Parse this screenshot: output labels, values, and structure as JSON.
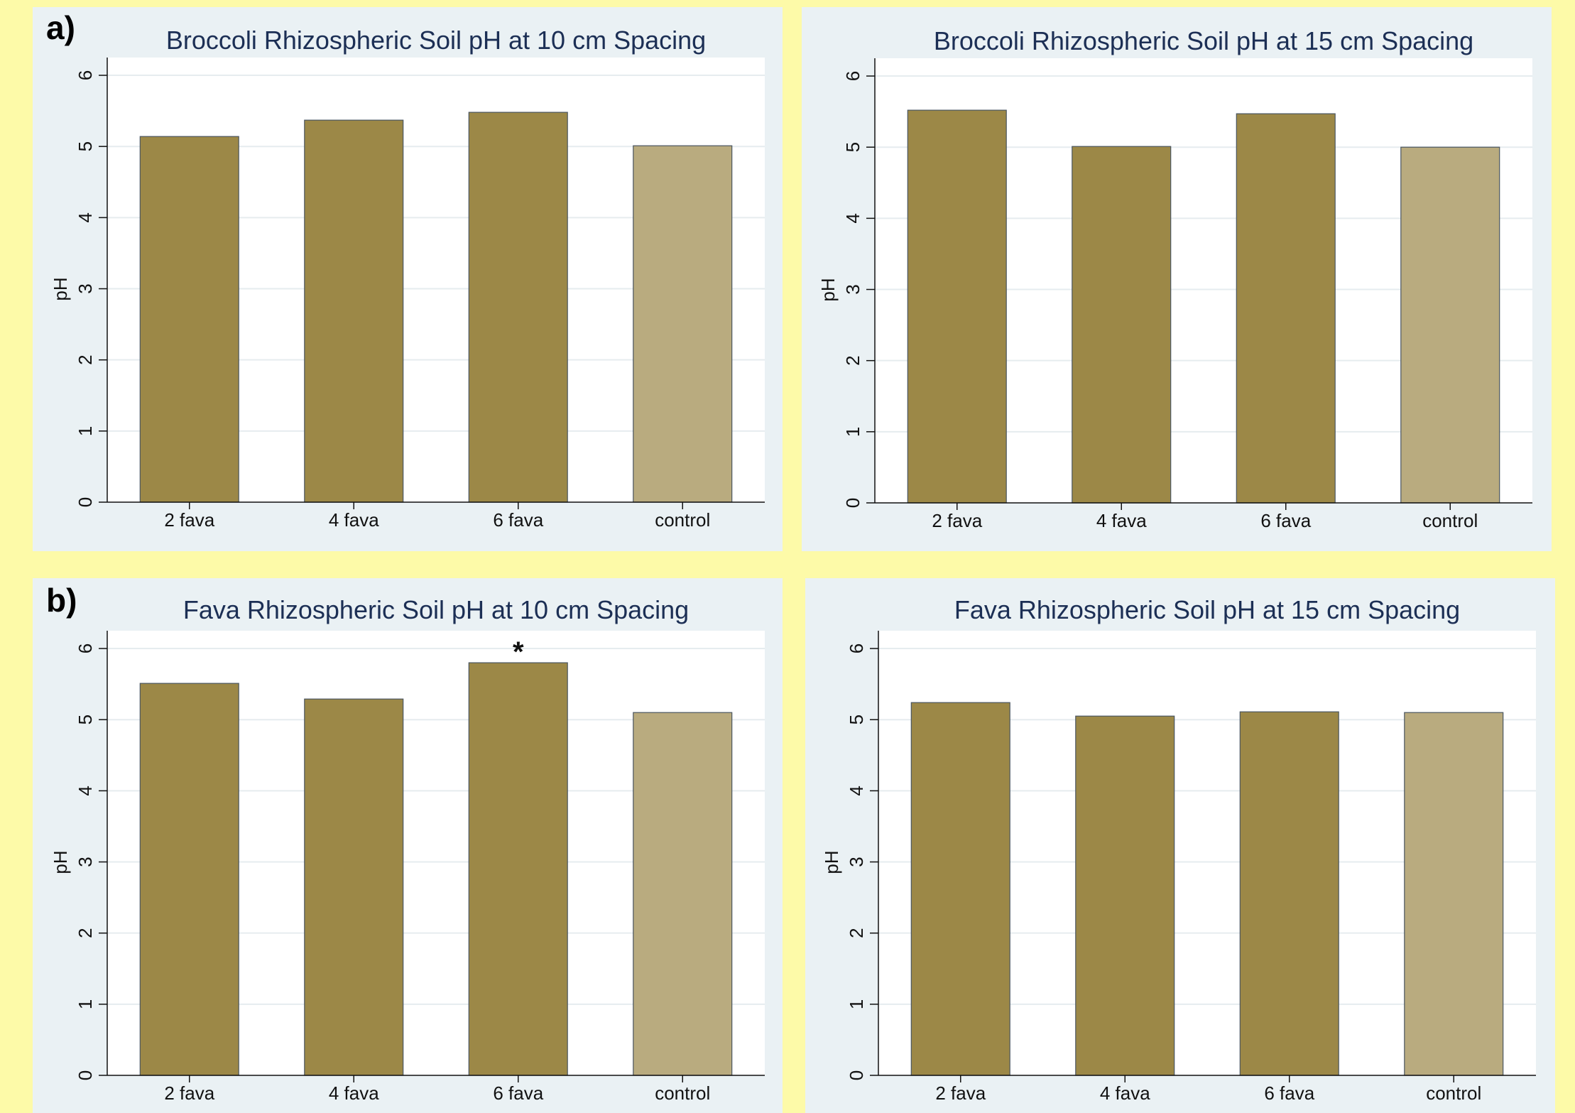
{
  "panel_labels": [
    "a)",
    "b)"
  ],
  "colors": {
    "treatment": "#9c8847",
    "control": "#b9ab7f",
    "panel_bg": "#eaf1f4",
    "page_bg": "#fdfaa8",
    "title": "#1c2f55"
  },
  "chart_data": [
    {
      "type": "bar",
      "title": "Broccoli Rhizospheric Soil pH at 10 cm Spacing",
      "categories": [
        "2 fava",
        "4 fava",
        "6 fava",
        "control"
      ],
      "values": [
        5.14,
        5.37,
        5.48,
        5.01
      ],
      "ylabel": "pH",
      "xlabel": "",
      "ylim": [
        0,
        6.25
      ],
      "yticks": [
        "0",
        "1",
        "2",
        "3",
        "4",
        "5",
        "6"
      ],
      "grid": true,
      "annotations": []
    },
    {
      "type": "bar",
      "title": "Broccoli Rhizospheric Soil pH at 15 cm Spacing",
      "categories": [
        "2 fava",
        "4 fava",
        "6 fava",
        "control"
      ],
      "values": [
        5.52,
        5.01,
        5.47,
        5.0
      ],
      "ylabel": "pH",
      "xlabel": "",
      "ylim": [
        0,
        6.25
      ],
      "yticks": [
        "0",
        "1",
        "2",
        "3",
        "4",
        "5",
        "6"
      ],
      "grid": true,
      "annotations": []
    },
    {
      "type": "bar",
      "title": "Fava Rhizospheric Soil pH at 10 cm Spacing",
      "categories": [
        "2 fava",
        "4 fava",
        "6 fava",
        "control"
      ],
      "values": [
        5.51,
        5.29,
        5.8,
        5.1
      ],
      "ylabel": "pH",
      "xlabel": "",
      "ylim": [
        0,
        6.25
      ],
      "yticks": [
        "0",
        "1",
        "2",
        "3",
        "4",
        "5",
        "6"
      ],
      "grid": true,
      "annotations": [
        {
          "category": "6 fava",
          "text": "*"
        }
      ]
    },
    {
      "type": "bar",
      "title": "Fava Rhizospheric Soil pH at 15 cm Spacing",
      "categories": [
        "2 fava",
        "4 fava",
        "6 fava",
        "control"
      ],
      "values": [
        5.24,
        5.05,
        5.11,
        5.1
      ],
      "ylabel": "pH",
      "xlabel": "",
      "ylim": [
        0,
        6.25
      ],
      "yticks": [
        "0",
        "1",
        "2",
        "3",
        "4",
        "5",
        "6"
      ],
      "grid": true,
      "annotations": []
    }
  ]
}
